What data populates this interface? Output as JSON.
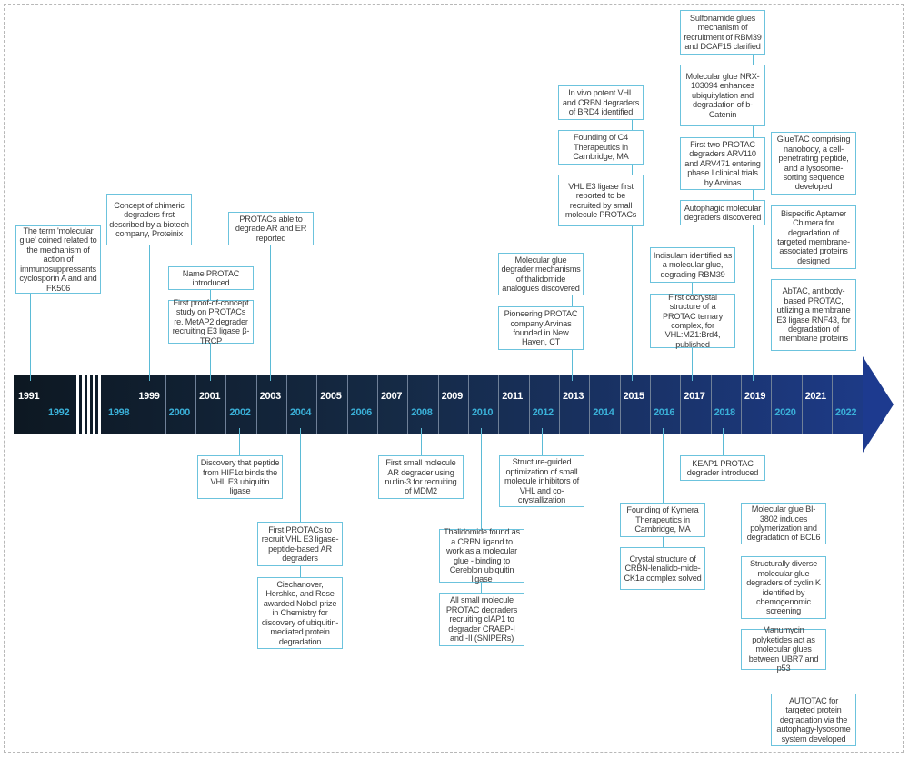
{
  "colors": {
    "bar_start": "#0d1822",
    "bar_end": "#1d3a86",
    "accent": "#5bbbd6",
    "odd_year_text": "#ffffff",
    "even_year_text": "#3ab0d8"
  },
  "years": [
    "1991",
    "1992",
    "1998",
    "1999",
    "2000",
    "2001",
    "2002",
    "2003",
    "2004",
    "2005",
    "2006",
    "2007",
    "2008",
    "2009",
    "2010",
    "2011",
    "2012",
    "2013",
    "2014",
    "2015",
    "2016",
    "2017",
    "2018",
    "2019",
    "2020",
    "2021",
    "2022"
  ],
  "events": [
    {
      "year": "1991",
      "side": "top",
      "items": [
        "The term 'molecular glue' coined related to the mechanism of action of immunosuppressants cyclosporin A and and FK506"
      ]
    },
    {
      "year": "1999",
      "side": "top",
      "items": [
        "Concept of chimeric degraders first described by a biotech company, Proteinix"
      ]
    },
    {
      "year": "2001",
      "side": "top",
      "items": [
        "Name PROTAC introduced",
        "First proof-of-concept study on PROTACs re. MetAP2 degrader recruiting E3 ligase β-TRCP"
      ]
    },
    {
      "year": "2003",
      "side": "top",
      "items": [
        "PROTACs able to degrade AR and ER reported"
      ]
    },
    {
      "year": "2013",
      "side": "top",
      "items": [
        "Molecular glue degrader mechanisms of thalidomide analogues discovered",
        "Pioneering PROTAC company Arvinas founded in New Haven, CT"
      ]
    },
    {
      "year": "2015",
      "side": "top",
      "items": [
        "In vivo potent VHL and CRBN degraders of BRD4 identified",
        "Founding of C4 Therapeutics in Cambridge, MA",
        "VHL E3 ligase first reported to be recruited by small molecule PROTACs"
      ]
    },
    {
      "year": "2017",
      "side": "top",
      "items": [
        "Indisulam identified as a molecular glue, degrading RBM39",
        "First cocrystal structure of a PROTAC ternary complex, for VHL:MZ1:Brd4, published"
      ]
    },
    {
      "year": "2019",
      "side": "top",
      "items": [
        "Sulfonamide glues mechanism of recruitment of RBM39 and DCAF15 clarified",
        "Molecular glue NRX-103094 enhances ubiquitylation and degradation of b-Catenin",
        "First two PROTAC degraders ARV110 and ARV471 entering phase I clinical trials by Arvinas",
        "Autophagic molecular degraders discovered"
      ]
    },
    {
      "year": "2021",
      "side": "top",
      "items": [
        "GlueTAC comprising nanobody, a cell-penetrating peptide, and a lysosome-sorting sequence developed",
        "Bispecific Aptamer Chimera for degradation of targeted membrane-associated proteins designed",
        "AbTAC, antibody-based PROTAC, utilizing a membrane E3 ligase RNF43, for degradation of membrane proteins"
      ]
    },
    {
      "year": "2002",
      "side": "bottom",
      "items": [
        "Discovery that peptide from HIF1α binds the VHL E3 ubiquitin ligase"
      ]
    },
    {
      "year": "2004",
      "side": "bottom",
      "items": [
        "First PROTACs to recruit VHL E3 ligase-peptide-based AR degraders",
        "Ciechanover, Hershko, and Rose awarded Nobel prize in Chemistry for discovery of ubiquitin-mediated protein degradation"
      ]
    },
    {
      "year": "2008",
      "side": "bottom",
      "items": [
        "First small molecule AR degrader using nutlin-3 for recruiting of MDM2"
      ]
    },
    {
      "year": "2010",
      "side": "bottom",
      "items": [
        "Thalidomide found as a CRBN ligand to work as a molecular glue - binding to Cereblon ubiquitin ligase",
        "All small molecule PROTAC degraders recruiting cIAP1 to degrader CRABP-I and -II (SNIPERs)"
      ]
    },
    {
      "year": "2012",
      "side": "bottom",
      "items": [
        "Structure-guided optimization of small molecule inhibitors of VHL and co-crystallization"
      ]
    },
    {
      "year": "2016",
      "side": "bottom",
      "items": [
        "Founding of Kymera Therapeutics in Cambridge, MA",
        "Crystal structure of CRBN-lenalido-mide-CK1a complex solved"
      ]
    },
    {
      "year": "2018",
      "side": "bottom",
      "items": [
        "KEAP1 PROTAC degrader introduced"
      ]
    },
    {
      "year": "2020",
      "side": "bottom",
      "items": [
        "Molecular glue BI-3802 induces polymerization and degradation of BCL6",
        "Structurally diverse molecular glue degraders of cyclin K identified by chemogenomic screening",
        "Manumycin polyketides act as molecular glues between UBR7 and p53"
      ]
    },
    {
      "year": "2022",
      "side": "bottom",
      "items": [
        "AUTOTAC for targeted protein degradation via the autophagy-lysosome system developed"
      ]
    }
  ]
}
